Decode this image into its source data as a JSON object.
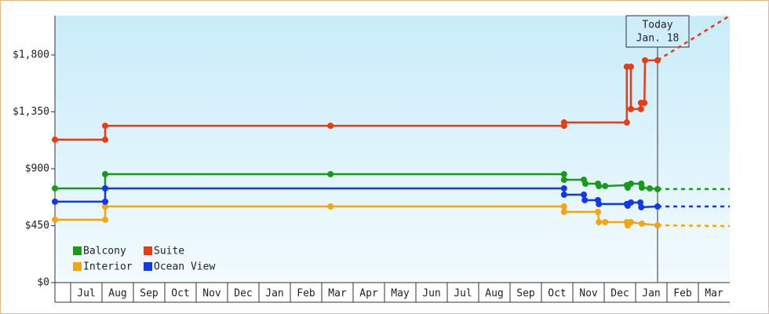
{
  "chart_data": {
    "type": "step-line",
    "categories": [
      "Jul",
      "Aug",
      "Sep",
      "Oct",
      "Nov",
      "Dec",
      "Jan",
      "Feb",
      "Mar",
      "Apr",
      "May",
      "Jun",
      "Jul",
      "Aug",
      "Sep",
      "Oct",
      "Nov",
      "Dec",
      "Jan",
      "Feb",
      "Mar"
    ],
    "xlim": [
      -0.5,
      21
    ],
    "ylim": [
      0,
      2110
    ],
    "yticks": [
      {
        "value": 0,
        "label": "$0"
      },
      {
        "value": 450,
        "label": "$450"
      },
      {
        "value": 900,
        "label": "$900"
      },
      {
        "value": 1350,
        "label": "$1,350"
      },
      {
        "value": 1800,
        "label": "$1,800"
      }
    ],
    "today": {
      "x": 18.7,
      "label": "Today",
      "date": "Jan. 18"
    },
    "series": [
      {
        "name": "Balcony",
        "color": "#1a9a1a",
        "x": [
          -0.5,
          1.1,
          1.1,
          8.28,
          15.72,
          15.72,
          16.35,
          16.4,
          16.8,
          16.83,
          17.03,
          17.72,
          17.75,
          17.85,
          18.18,
          18.2,
          18.45,
          18.7
        ],
        "values": [
          745,
          745,
          857,
          857,
          857,
          813,
          813,
          782,
          782,
          763,
          763,
          770,
          751,
          782,
          782,
          751,
          745,
          739
        ],
        "forecast_x": [
          18.7,
          21
        ],
        "forecast_values": [
          739,
          739
        ]
      },
      {
        "name": "Suite",
        "color": "#ee3a12",
        "x": [
          -0.5,
          1.1,
          1.1,
          8.28,
          15.72,
          15.72,
          17.72,
          17.72,
          17.85,
          17.85,
          18.17,
          18.17,
          18.28,
          18.3,
          18.7
        ],
        "values": [
          1130,
          1130,
          1240,
          1240,
          1240,
          1266,
          1266,
          1707,
          1707,
          1372,
          1372,
          1421,
          1421,
          1757,
          1757
        ],
        "forecast_x": [
          18.7,
          21
        ],
        "forecast_values": [
          1757,
          2110
        ]
      },
      {
        "name": "Interior",
        "color": "#f5a412",
        "x": [
          -0.5,
          1.1,
          1.1,
          8.28,
          15.72,
          15.72,
          16.8,
          16.83,
          17.03,
          17.72,
          17.75,
          17.85,
          18.2,
          18.7
        ],
        "values": [
          497,
          497,
          602,
          602,
          602,
          559,
          559,
          478,
          478,
          478,
          453,
          478,
          466,
          453
        ],
        "forecast_x": [
          18.7,
          21
        ],
        "forecast_values": [
          453,
          447
        ]
      },
      {
        "name": "Ocean View",
        "color": "#1238ee",
        "x": [
          -0.5,
          1.1,
          1.1,
          15.72,
          15.72,
          16.35,
          16.38,
          16.8,
          16.83,
          17.72,
          17.75,
          17.85,
          18.15,
          18.18,
          18.7
        ],
        "values": [
          640,
          640,
          745,
          745,
          695,
          695,
          652,
          652,
          621,
          621,
          608,
          633,
          633,
          596,
          602
        ],
        "forecast_x": [
          18.7,
          21
        ],
        "forecast_values": [
          602,
          602
        ]
      }
    ]
  }
}
